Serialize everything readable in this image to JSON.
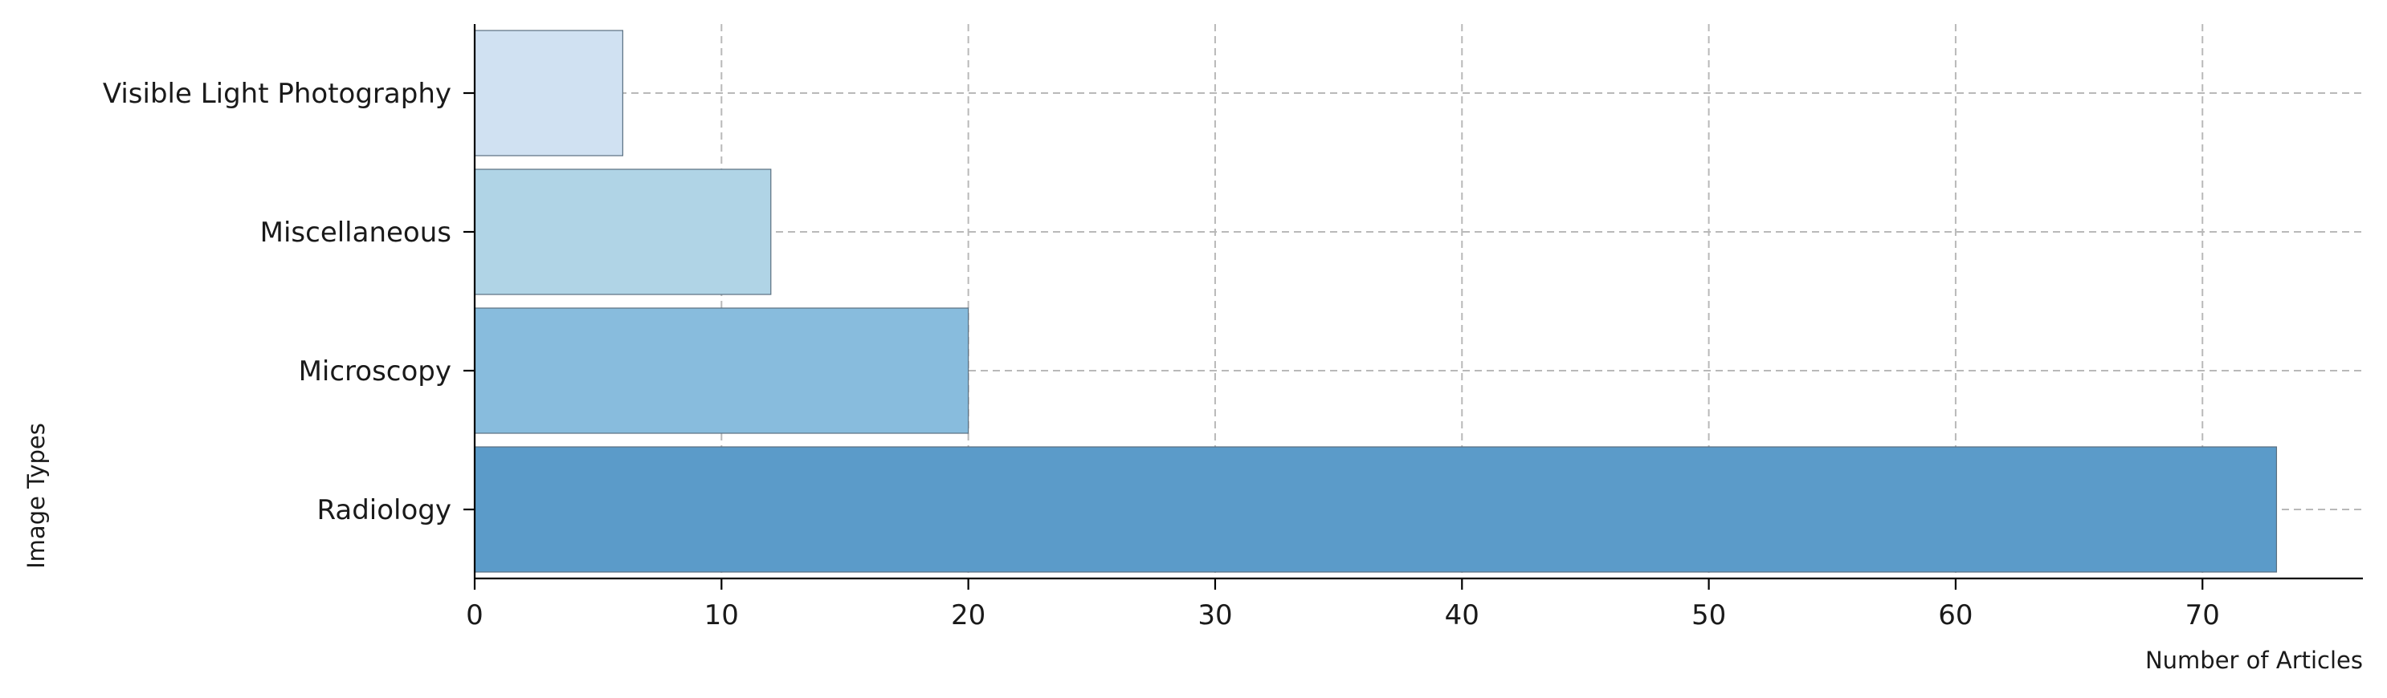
{
  "chart_data": {
    "type": "bar",
    "orientation": "horizontal",
    "categories": [
      "Visible Light Photography",
      "Miscellaneous",
      "Microscopy",
      "Radiology"
    ],
    "values": [
      6,
      12,
      20,
      73
    ],
    "colors": [
      "#d0e1f2",
      "#b0d4e6",
      "#88bcdd",
      "#5b9bc9"
    ],
    "xlabel": "Number of Articles",
    "ylabel": "Image Types",
    "xlim": [
      0,
      76.5
    ],
    "xticks": [
      0,
      10,
      20,
      30,
      40,
      50,
      60,
      70
    ],
    "grid": true
  }
}
